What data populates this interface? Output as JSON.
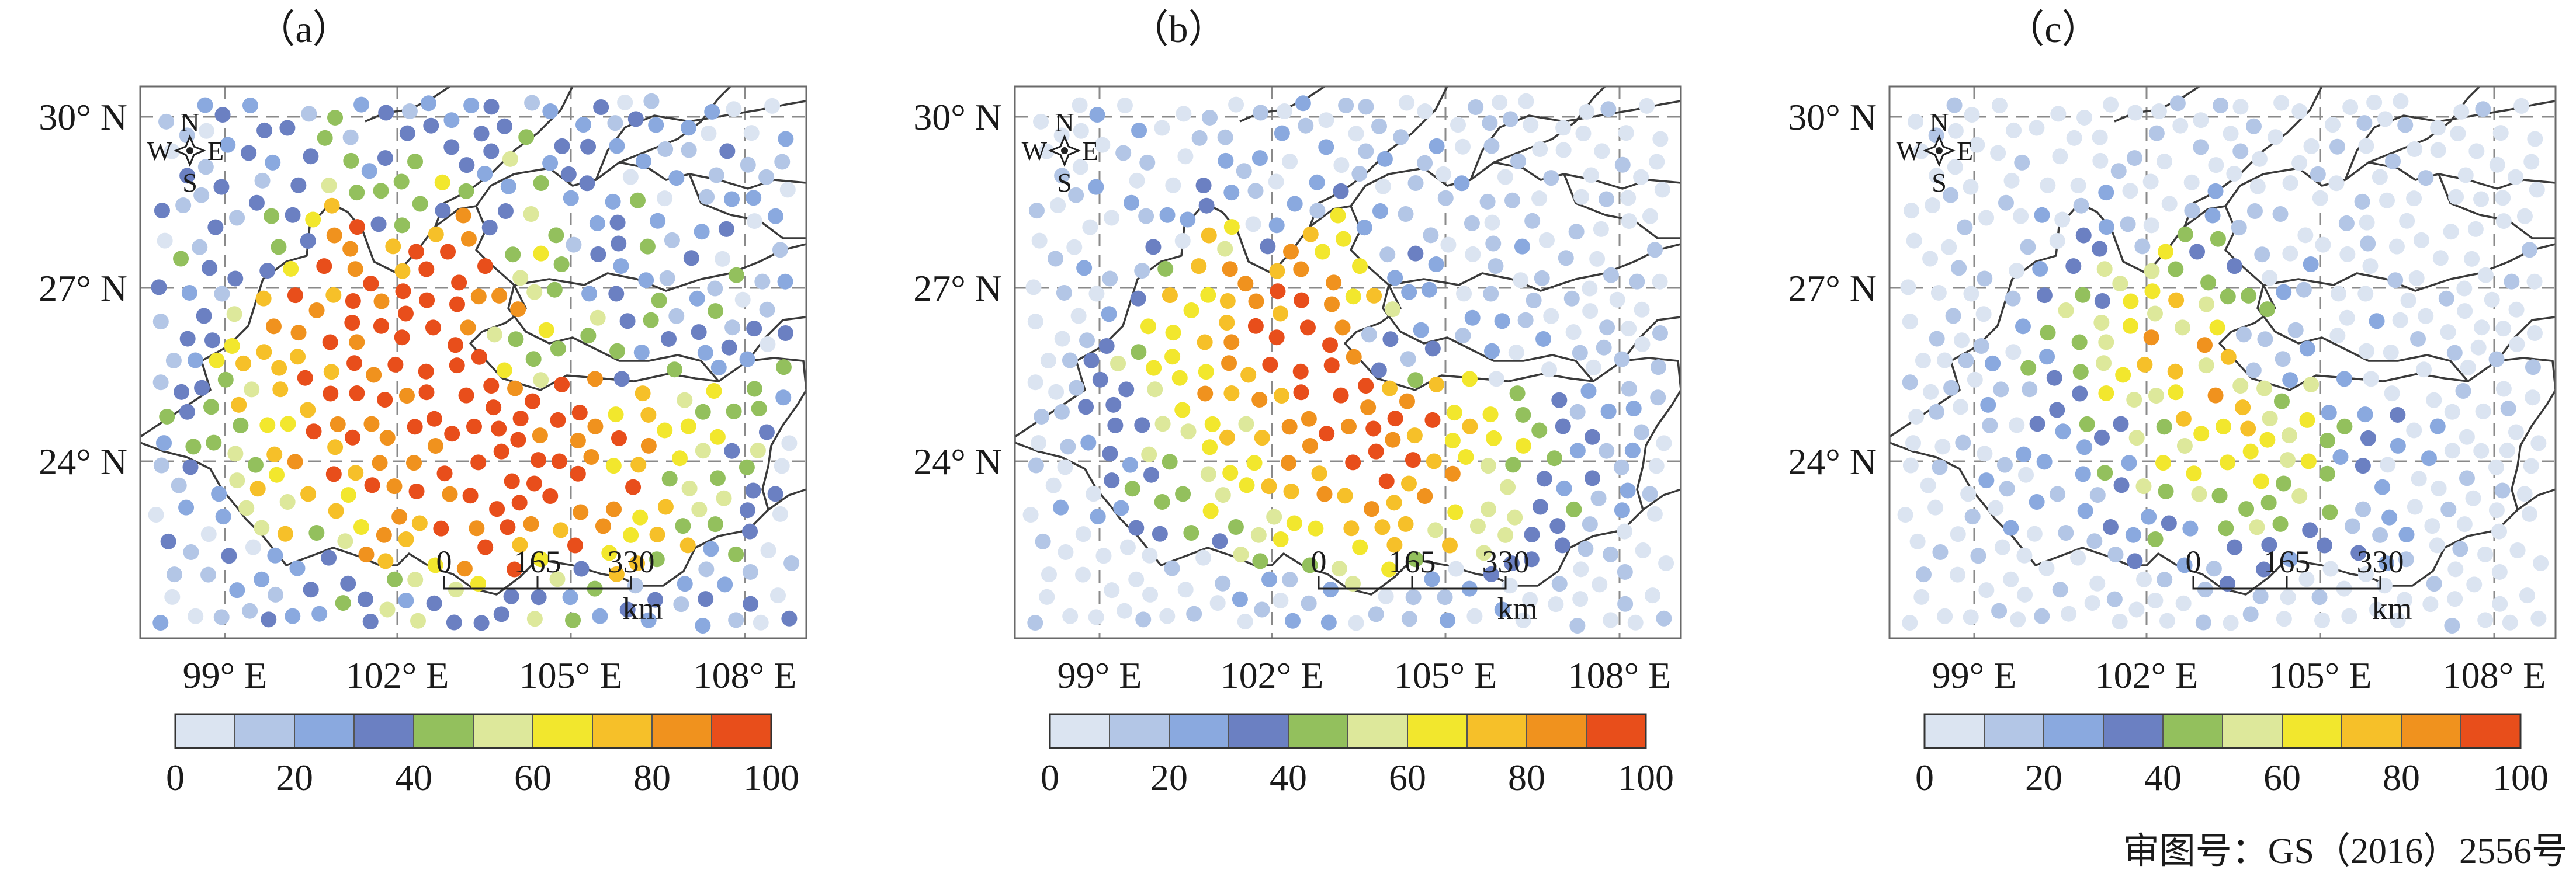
{
  "palette": [
    "#dbe4f1",
    "#b3c6e6",
    "#8aa9df",
    "#6b80c2",
    "#93c05d",
    "#dde89b",
    "#f2e72d",
    "#f6c029",
    "#f0921e",
    "#e84e1b"
  ],
  "panels": [
    {
      "label": "（a）",
      "lat_labels": [
        "30° N",
        "27° N",
        "24° N"
      ],
      "lon_labels": [
        "99° E",
        "102° E",
        "105° E",
        "108° E"
      ],
      "compass": {
        "n": "N",
        "s": "S",
        "w": "W",
        "e": "E"
      },
      "scale": {
        "ticks": [
          "0",
          "165",
          "330"
        ],
        "unit": "km"
      },
      "colorbar_labels": [
        "0",
        "20",
        "40",
        "60",
        "80",
        "100"
      ]
    },
    {
      "label": "（b）",
      "lat_labels": [
        "30° N",
        "27° N",
        "24° N"
      ],
      "lon_labels": [
        "99° E",
        "102° E",
        "105° E",
        "108° E"
      ],
      "compass": {
        "n": "N",
        "s": "S",
        "w": "W",
        "e": "E"
      },
      "scale": {
        "ticks": [
          "0",
          "165",
          "330"
        ],
        "unit": "km"
      },
      "colorbar_labels": [
        "0",
        "20",
        "40",
        "60",
        "80",
        "100"
      ]
    },
    {
      "label": "（c）",
      "lat_labels": [
        "30° N",
        "27° N",
        "24° N"
      ],
      "lon_labels": [
        "99° E",
        "102° E",
        "105° E",
        "108° E"
      ],
      "compass": {
        "n": "N",
        "s": "S",
        "w": "W",
        "e": "E"
      },
      "scale": {
        "ticks": [
          "0",
          "165",
          "330"
        ],
        "unit": "km"
      },
      "colorbar_labels": [
        "0",
        "20",
        "40",
        "60",
        "80",
        "100"
      ]
    }
  ],
  "approval_number": "审图号：GS（2016）2556号"
}
